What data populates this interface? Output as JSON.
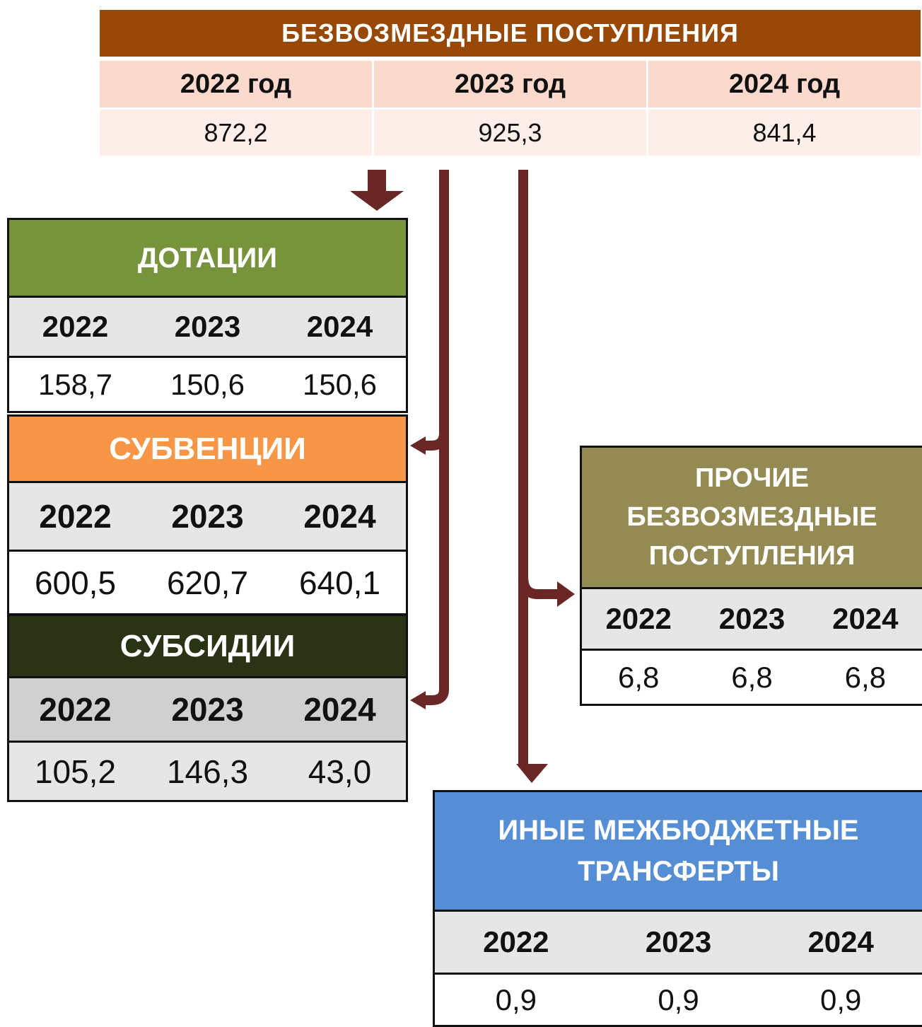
{
  "header": {
    "title": "БЕЗВОЗМЕЗДНЫЕ ПОСТУПЛЕНИЯ",
    "columns": [
      "2022 год",
      "2023 год",
      "2024 год"
    ],
    "values": [
      "872,2",
      "925,3",
      "841,4"
    ]
  },
  "blocks": [
    {
      "title": "ДОТАЦИИ",
      "columns": [
        "2022",
        "2023",
        "2024"
      ],
      "values": [
        "158,7",
        "150,6",
        "150,6"
      ]
    },
    {
      "title": "СУБВЕНЦИИ",
      "columns": [
        "2022",
        "2023",
        "2024"
      ],
      "values": [
        "600,5",
        "620,7",
        "640,1"
      ]
    },
    {
      "title": "СУБСИДИИ",
      "columns": [
        "2022",
        "2023",
        "2024"
      ],
      "values": [
        "105,2",
        "146,3",
        "43,0"
      ]
    },
    {
      "title": "ПРОЧИЕ БЕЗВОЗМЕЗДНЫЕ ПОСТУПЛЕНИЯ",
      "columns": [
        "2022",
        "2023",
        "2024"
      ],
      "values": [
        "6,8",
        "6,8",
        "6,8"
      ]
    },
    {
      "title": "ИНЫЕ МЕЖБЮДЖЕТНЫЕ ТРАНСФЕРТЫ",
      "columns": [
        "2022",
        "2023",
        "2024"
      ],
      "values": [
        "0,9",
        "0,9",
        "0,9"
      ]
    }
  ]
}
